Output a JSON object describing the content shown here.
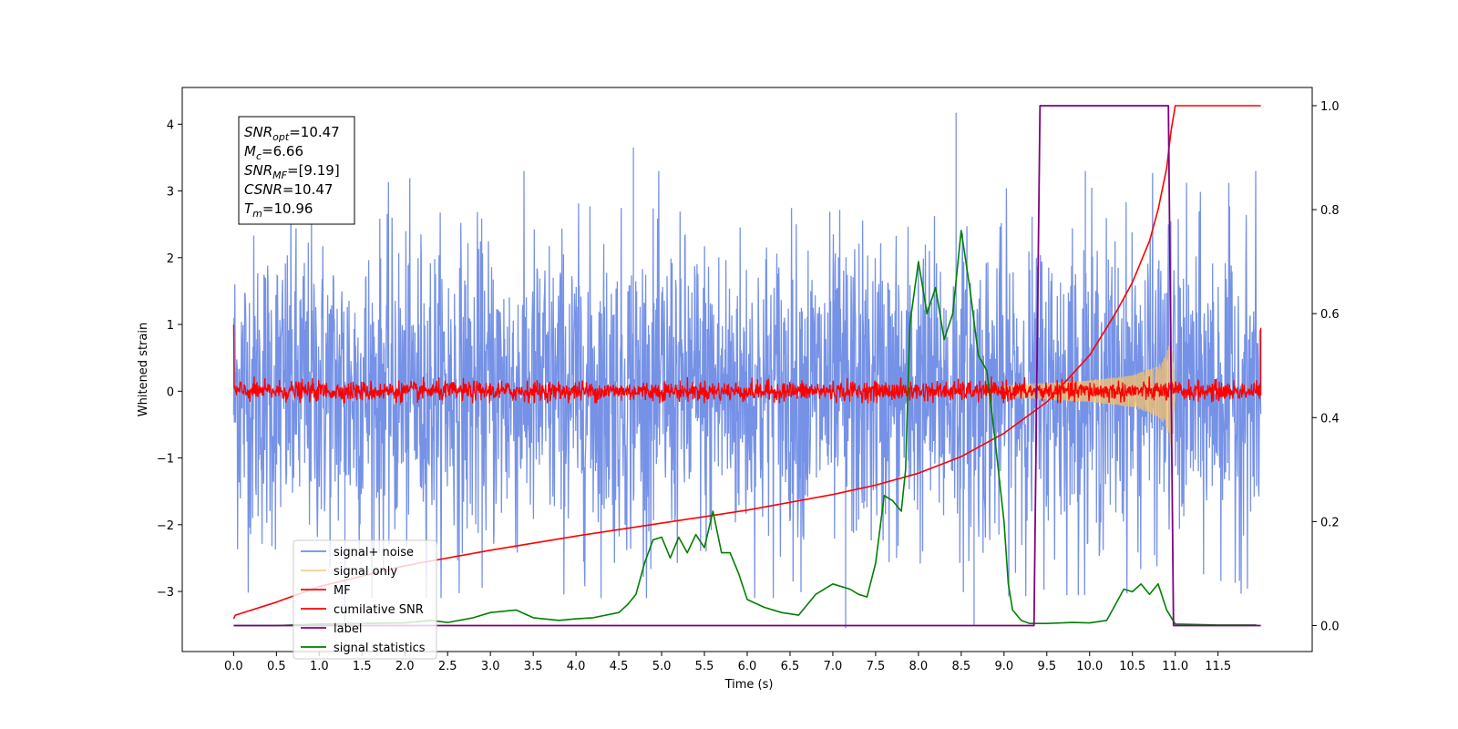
{
  "chart_data": {
    "type": "line",
    "xlabel": "Time (s)",
    "ylabel_left": "Whitened strain",
    "ylabel_right": "",
    "xlim": [
      -0.6,
      12.6
    ],
    "ylim_left": [
      -3.9,
      4.55
    ],
    "ylim_right": [
      -0.05,
      1.035
    ],
    "x_ticks": [
      0.0,
      0.5,
      1.0,
      1.5,
      2.0,
      2.5,
      3.0,
      3.5,
      4.0,
      4.5,
      5.0,
      5.5,
      6.0,
      6.5,
      7.0,
      7.5,
      8.0,
      8.5,
      9.0,
      9.5,
      10.0,
      10.5,
      11.0,
      11.5
    ],
    "x_tick_labels": [
      "0.0",
      "0.5",
      "1.0",
      "1.5",
      "2.0",
      "2.5",
      "3.0",
      "3.5",
      "4.0",
      "4.5",
      "5.0",
      "5.5",
      "6.0",
      "6.5",
      "7.0",
      "7.5",
      "8.0",
      "8.5",
      "9.0",
      "9.5",
      "10.0",
      "10.5",
      "11.0",
      "11.5"
    ],
    "y_left_ticks": [
      -3,
      -2,
      -1,
      0,
      1,
      2,
      3,
      4
    ],
    "y_left_tick_labels": [
      "−3",
      "−2",
      "−1",
      "0",
      "1",
      "2",
      "3",
      "4"
    ],
    "y_right_ticks": [
      0.0,
      0.2,
      0.4,
      0.6,
      0.8,
      1.0
    ],
    "y_right_tick_labels": [
      "0.0",
      "0.2",
      "0.4",
      "0.6",
      "0.8",
      "1.0"
    ],
    "grid": false,
    "legend_position": "lower-left",
    "series": [
      {
        "name": "signal+ noise",
        "axis": "left",
        "color": "#6f8ce6",
        "kind": "noise_band",
        "description_values": {
          "x_start": 0.0,
          "x_end": 12.0,
          "typical_range": [
            -2.2,
            2.5
          ],
          "max": 4.17,
          "min": -3.55
        }
      },
      {
        "name": "signal only",
        "axis": "left",
        "color": "#f5c06b",
        "kind": "chirp_envelope",
        "envelope_x": [
          9.0,
          9.5,
          10.0,
          10.5,
          10.8,
          10.9,
          10.95,
          11.0
        ],
        "envelope_amp": [
          0.08,
          0.12,
          0.16,
          0.24,
          0.38,
          0.56,
          0.9,
          0.0
        ]
      },
      {
        "name": "MF",
        "axis": "left",
        "color": "#ff0000",
        "kind": "mf_noise",
        "description_values": {
          "x_start": 0.0,
          "x_end": 12.0,
          "typical_range": [
            -0.18,
            0.22
          ],
          "start_value": 1.0,
          "end_value": 0.95
        }
      },
      {
        "name": "cumilative SNR",
        "axis": "right",
        "color": "#ff0000",
        "x": [
          0.0,
          0.02,
          0.5,
          1.0,
          2.0,
          3.0,
          4.0,
          5.0,
          6.0,
          7.0,
          7.5,
          8.0,
          8.5,
          9.0,
          9.5,
          10.0,
          10.3,
          10.5,
          10.7,
          10.8,
          10.9,
          10.95,
          11.0,
          12.0
        ],
        "y": [
          0.013,
          0.02,
          0.045,
          0.075,
          0.115,
          0.145,
          0.172,
          0.197,
          0.222,
          0.252,
          0.27,
          0.293,
          0.325,
          0.37,
          0.43,
          0.52,
          0.6,
          0.66,
          0.74,
          0.8,
          0.88,
          0.95,
          1.0,
          1.0
        ]
      },
      {
        "name": "label",
        "axis": "right",
        "color": "#800080",
        "x": [
          0.0,
          9.35,
          9.42,
          10.92,
          10.98,
          12.0
        ],
        "y": [
          0.0,
          0.0,
          1.0,
          1.0,
          0.0,
          0.0
        ]
      },
      {
        "name": "signal statistics",
        "axis": "right",
        "color": "#008000",
        "x": [
          0.0,
          0.5,
          1.0,
          1.5,
          2.0,
          2.3,
          2.5,
          2.8,
          3.0,
          3.3,
          3.5,
          3.8,
          4.0,
          4.2,
          4.5,
          4.6,
          4.7,
          4.8,
          4.9,
          5.0,
          5.1,
          5.2,
          5.3,
          5.4,
          5.5,
          5.6,
          5.7,
          5.8,
          5.9,
          6.0,
          6.2,
          6.4,
          6.6,
          6.8,
          7.0,
          7.2,
          7.3,
          7.4,
          7.5,
          7.6,
          7.7,
          7.8,
          7.85,
          7.9,
          8.0,
          8.1,
          8.2,
          8.3,
          8.4,
          8.5,
          8.6,
          8.7,
          8.8,
          8.9,
          9.0,
          9.05,
          9.1,
          9.2,
          9.3,
          9.5,
          9.8,
          10.0,
          10.2,
          10.3,
          10.4,
          10.5,
          10.6,
          10.7,
          10.8,
          10.9,
          11.0,
          11.5,
          11.95
        ],
        "y": [
          0.0,
          0.0,
          0.003,
          0.004,
          0.005,
          0.01,
          0.006,
          0.015,
          0.025,
          0.03,
          0.015,
          0.01,
          0.013,
          0.015,
          0.025,
          0.04,
          0.06,
          0.12,
          0.165,
          0.17,
          0.13,
          0.17,
          0.14,
          0.175,
          0.15,
          0.22,
          0.14,
          0.14,
          0.1,
          0.05,
          0.035,
          0.025,
          0.02,
          0.06,
          0.08,
          0.07,
          0.06,
          0.055,
          0.12,
          0.25,
          0.24,
          0.22,
          0.3,
          0.58,
          0.7,
          0.6,
          0.65,
          0.55,
          0.6,
          0.76,
          0.65,
          0.52,
          0.49,
          0.35,
          0.2,
          0.08,
          0.03,
          0.01,
          0.004,
          0.004,
          0.006,
          0.005,
          0.01,
          0.04,
          0.07,
          0.065,
          0.08,
          0.06,
          0.08,
          0.03,
          0.003,
          0.001,
          0.001
        ]
      }
    ],
    "annotations": {
      "info_box": [
        {
          "base": "SNR",
          "sub": "opt",
          "value": "=10.47"
        },
        {
          "base": "M",
          "sub": "c",
          "value": "=6.66"
        },
        {
          "base": "SNR",
          "sub": "MF",
          "value": "=[9.19]"
        },
        {
          "base": "CSNR",
          "sub": "",
          "value": "=10.47"
        },
        {
          "base": "T",
          "sub": "m",
          "value": "=10.96"
        }
      ]
    }
  }
}
